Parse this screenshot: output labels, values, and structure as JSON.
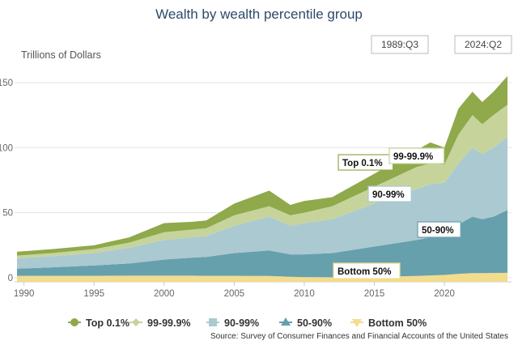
{
  "chart_data": {
    "type": "area",
    "stacked": true,
    "title": "Wealth by wealth percentile group",
    "ylabel": "Trillions of Dollars",
    "xlabel": "",
    "xlim": [
      1989.5,
      2024.5
    ],
    "ylim": [
      0,
      155
    ],
    "x_ticks": [
      "1990",
      "1995",
      "2000",
      "2005",
      "2010",
      "2015",
      "2020"
    ],
    "y_ticks": [
      "0",
      "50",
      "100",
      "150"
    ],
    "grid": true,
    "legend_position": "bottom",
    "date_range": {
      "start": "1989:Q3",
      "end": "2024:Q2"
    },
    "x": [
      1989.5,
      1992,
      1995,
      1997.5,
      2000,
      2002,
      2003,
      2005,
      2007.5,
      2009,
      2010,
      2012,
      2015,
      2018,
      2019,
      2020,
      2021,
      2022,
      2022.7,
      2023.5,
      2024.5
    ],
    "series": [
      {
        "name": "Bottom 50%",
        "color": "#f2dc8e",
        "marker": "triangle-down",
        "values": [
          1.5,
          1.5,
          1.5,
          1.6,
          1.6,
          1.6,
          1.5,
          1.5,
          1.4,
          0.8,
          0.5,
          0.4,
          0.8,
          1.4,
          1.8,
          2.2,
          3.0,
          3.6,
          3.6,
          3.7,
          3.8
        ]
      },
      {
        "name": "50-90%",
        "color": "#67a0ad",
        "marker": "triangle",
        "values": [
          5.5,
          6.5,
          8,
          9.4,
          12.4,
          13.9,
          14.5,
          17.5,
          19.6,
          17.2,
          17.5,
          18.6,
          23.2,
          27.6,
          29.2,
          31.8,
          38,
          43.4,
          41.4,
          43.3,
          48.2
        ]
      },
      {
        "name": "90-99%",
        "color": "#abc9d0",
        "marker": "square",
        "values": [
          8,
          8.5,
          9.5,
          12,
          15,
          15.5,
          16,
          21,
          26,
          22,
          24,
          26,
          33,
          39,
          41,
          39,
          47,
          53,
          50,
          53,
          56
        ]
      },
      {
        "name": "99-99.9%",
        "color": "#c6d49c",
        "marker": "diamond",
        "values": [
          2,
          2.5,
          3,
          4,
          6,
          6,
          6,
          8,
          8,
          8,
          8,
          10,
          13,
          17,
          16,
          14,
          22,
          25,
          23,
          25,
          25
        ]
      },
      {
        "name": "Top 0.1%",
        "color": "#8fa94b",
        "marker": "circle",
        "values": [
          3,
          3,
          3,
          4,
          7,
          6,
          6,
          9,
          12,
          8,
          9,
          7,
          10,
          13,
          16,
          13,
          20,
          18,
          17,
          18,
          22
        ]
      }
    ],
    "annotations": [
      "Top 0.1%",
      "99-99.9%",
      "90-99%",
      "50-90%",
      "Bottom 50%"
    ],
    "source": "Source: Survey of Consumer Finances and Financial Accounts of the United States"
  }
}
